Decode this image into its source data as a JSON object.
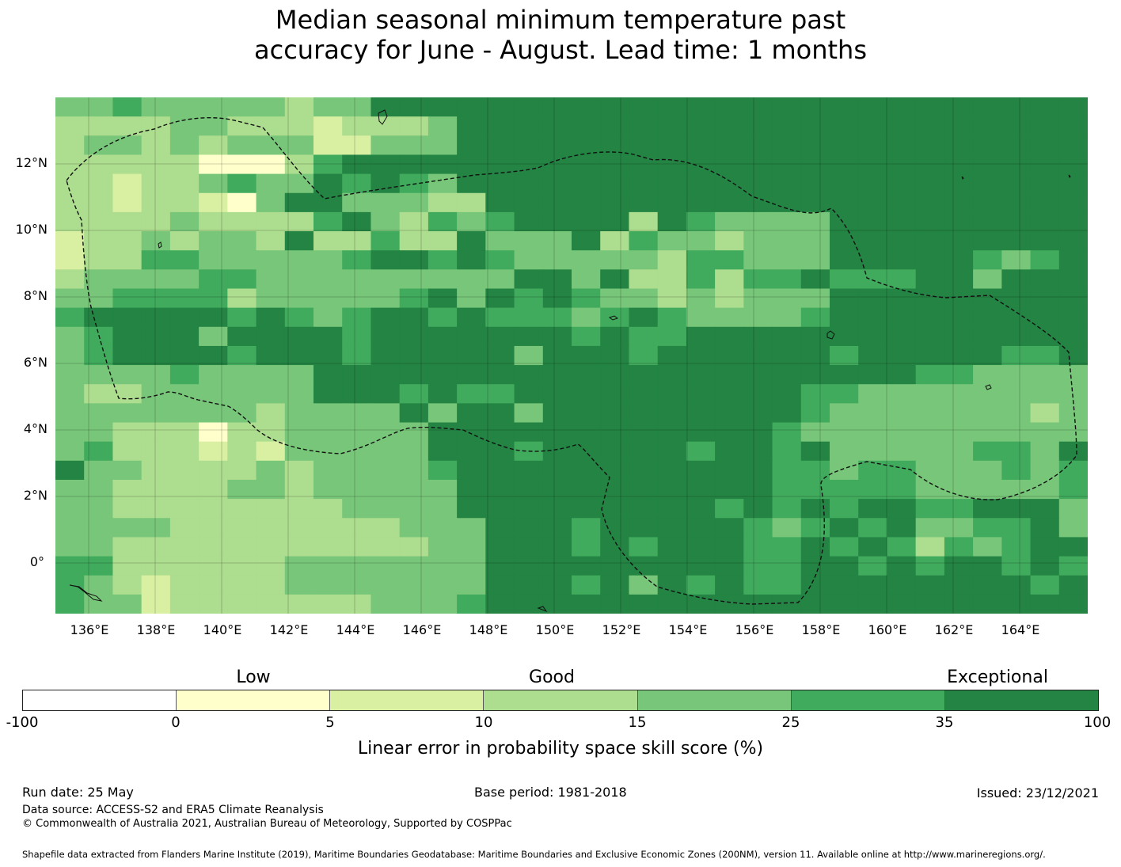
{
  "title": {
    "line1": "Median seasonal minimum temperature past",
    "line2": "accuracy for June - August. Lead time: 1 months"
  },
  "map": {
    "lat_labels": [
      "12°N",
      "10°N",
      "8°N",
      "6°N",
      "4°N",
      "2°N",
      "0°"
    ],
    "lon_labels": [
      "136°E",
      "138°E",
      "140°E",
      "142°E",
      "144°E",
      "146°E",
      "148°E",
      "150°E",
      "152°E",
      "154°E",
      "156°E",
      "158°E",
      "160°E",
      "162°E",
      "164°E"
    ],
    "palette": [
      "#ffffcc",
      "#d9f0a3",
      "#addd8e",
      "#78c679",
      "#41ab5d",
      "#238443"
    ],
    "grid": [
      "445444443446666666666666666666666666",
      "333344333233346666666666666666666666",
      "344343444224446666666666666666666666",
      "333331113566666666666666666666666666",
      "332334544656546666666666666666666666",
      "332332146644433666666666666666666666",
      "333343333564354566663654444666666666",
      "233434436335336444635443444666666666",
      "233554444456656544444355444666665456",
      "344445544444444466463353556555664666",
      "445555344444564656544343444666666666",
      "566666565456656555456544445666666666",
      "456664666656666666565566666666666666",
      "456666566656666646665666666566666556",
      "444454444666666666666666666666554444",
      "433444444666565566666666665544444444",
      "444444434444646646666666665444444434",
      "443331334444466666666666654444444444",
      "453332324444466656666656656444445546",
      "644333343444456666666666655455444545",
      "443333443444446666666666655555444445",
      "443333333344446666666665656566556664",
      "444433333333444666566666545656445564",
      "443333333333344666565666556565354566",
      "553333334444444666666666556656566565",
      "543233334444444666564656556666666656",
      "544233333334445666666666666666666666"
    ]
  },
  "colorbar": {
    "categories": [
      "Low",
      "Good",
      "Exceptional"
    ],
    "ticks": [
      "-100",
      "0",
      "5",
      "10",
      "15",
      "25",
      "35",
      "100"
    ],
    "colors": [
      "#ffffff",
      "#ffffcc",
      "#d9f0a3",
      "#addd8e",
      "#78c679",
      "#41ab5d",
      "#238443"
    ],
    "label": "Linear error in probability space skill score (%)"
  },
  "footer": {
    "run_date": "Run date: 25 May",
    "base_period": "Base period: 1981-2018",
    "issued": "Issued: 23/12/2021",
    "data_source": "Data source: ACCESS-S2 and ERA5 Climate Reanalysis",
    "copyright": "© Commonwealth of Australia 2021, Australian Bureau of Meteorology, Supported by COSPPac",
    "shapefile": "Shapefile data extracted from Flanders Marine Institute (2019), Maritime Boundaries Geodatabase: Maritime Boundaries and Exclusive Economic Zones (200NM), version 11. Available online at http://www.marineregions.org/."
  }
}
